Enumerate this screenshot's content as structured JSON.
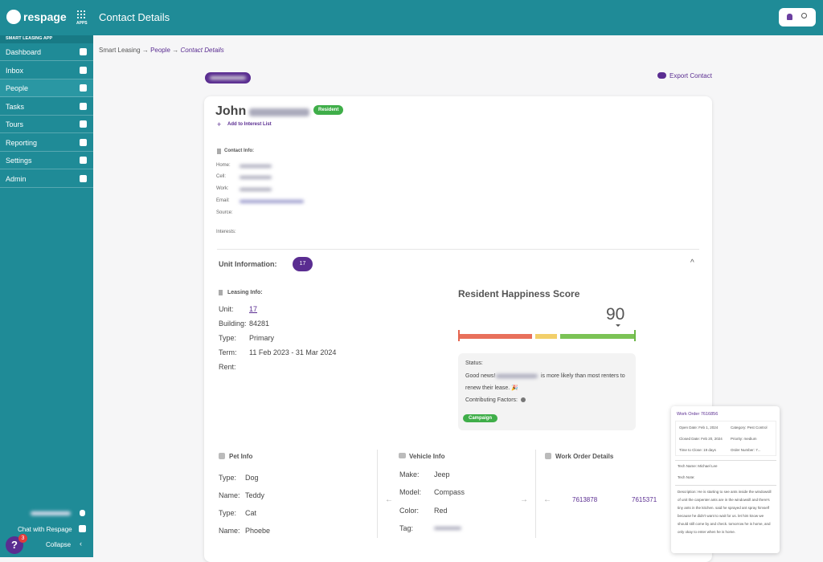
{
  "header": {
    "logo": "respage",
    "apps": "APPS",
    "title": "Contact Details"
  },
  "sidebar": {
    "section": "SMART LEASING APP",
    "items": [
      "Dashboard",
      "Inbox",
      "People",
      "Tasks",
      "Tours",
      "Reporting",
      "Settings",
      "Admin"
    ],
    "chat": "Chat with Respage",
    "collapse": "Collapse",
    "help": "?",
    "badge": "3"
  },
  "breadcrumb": {
    "items": [
      "Smart Leasing",
      "People",
      "Contact Details"
    ],
    "separator": "→"
  },
  "export": "Export Contact",
  "contact": {
    "first_name": "John",
    "status": "Resident",
    "add_interest": "Add to Interest List",
    "contact_info_title": "Contact Info:",
    "fields": [
      "Home:",
      "Cell:",
      "Work:",
      "Email:",
      "Source:",
      "Interests:"
    ]
  },
  "unit": {
    "title": "Unit Information:",
    "count": "17",
    "leasing_title": "Leasing Info:",
    "rows": [
      {
        "label": "Unit:",
        "value": "17"
      },
      {
        "label": "Building:",
        "value": "84281"
      },
      {
        "label": "Type:",
        "value": "Primary"
      },
      {
        "label": "Term:",
        "value": "11 Feb 2023 - 31 Mar 2024"
      },
      {
        "label": "Rent:"
      }
    ]
  },
  "happiness": {
    "title": "Resident Happiness Score",
    "score": "90",
    "status_label": "Status:",
    "message_start": "Good news!",
    "message_end": "is more likely than most renters to",
    "message_line2": "renew their lease. 🎉",
    "factors": "Contributing Factors:",
    "tag": "Campaign"
  },
  "pet": {
    "title": "Pet Info",
    "rows": [
      {
        "label": "Type:",
        "value": "Dog"
      },
      {
        "label": "Name:",
        "value": "Teddy"
      },
      {
        "label": "Type:",
        "value": "Cat"
      },
      {
        "label": "Name:",
        "value": "Phoebe"
      }
    ]
  },
  "vehicle": {
    "title": "Vehicle Info",
    "rows": [
      {
        "label": "Make:",
        "value": "Jeep"
      },
      {
        "label": "Model:",
        "value": "Compass"
      },
      {
        "label": "Color:",
        "value": "Red"
      },
      {
        "label": "Tag:"
      }
    ]
  },
  "work_orders": {
    "title": "Work Order Details",
    "items": [
      "7613878",
      "7615371"
    ]
  },
  "popup": {
    "title": "Work Order 7616856",
    "fields": [
      "Open Date: Feb 1, 2024",
      "Category: Pest Control",
      "Closed Date: Feb 20, 2024",
      "Priority: medium",
      "Time to Close: 19 days",
      "Order Number: 7..."
    ],
    "tech_name": "Tech Name: Michael Lee",
    "tech_note": "Tech Note:",
    "description": "Description: He is starting to see ants inside the windowsill of unit the carpenter ants are in the windowsill and there's tiny ants in the kitchen. said he sprayed ant spray himself because he didn't want to wait for us. let him know we should still come by and check. tomorrow he is home, and only okay to enter when he is home."
  }
}
